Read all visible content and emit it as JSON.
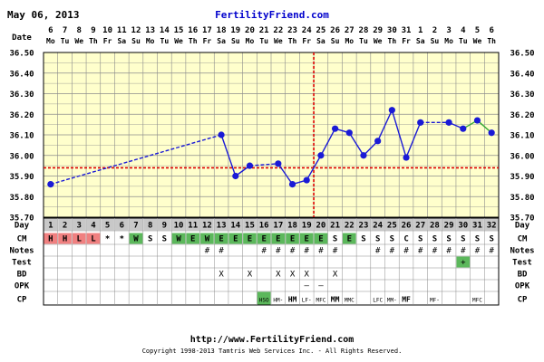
{
  "header": {
    "date": "May 06, 2013",
    "site": "FertilityFriend.com"
  },
  "footer": {
    "url": "http://www.FertilityFriend.com",
    "copyright": "Copyright 1998-2013 Tamtris Web Services Inc. - All Rights Reserved."
  },
  "row_labels": {
    "date": "Date",
    "day": "Day",
    "cm": "CM",
    "notes": "Notes",
    "test": "Test",
    "bd": "BD",
    "opk": "OPK",
    "cp": "CP"
  },
  "colors": {
    "plot_bg": "#ffffcc",
    "grid": "#8c8c8c",
    "frame": "#000000",
    "temp_line": "#1a1ad6",
    "temp_point": "#1a1ad6",
    "coverline": "#dd0000",
    "ovulation_line": "#dd0000",
    "final_segment": "#33aa33",
    "header_blue": "#0000cc",
    "day_cell_bg": "#c8c8c8",
    "cm_h_bg": "#f08080",
    "cm_green_bg": "#5cb85c",
    "test_bg": "#5cb85c",
    "cp_green_bg": "#5cb85c"
  },
  "chart_data": {
    "type": "line",
    "ylim": [
      35.7,
      36.5
    ],
    "yticks": [
      "35.70",
      "35.80",
      "35.90",
      "36.00",
      "36.10",
      "36.20",
      "36.30",
      "36.40",
      "36.50"
    ],
    "dates": [
      "6",
      "7",
      "8",
      "9",
      "10",
      "11",
      "12",
      "13",
      "14",
      "15",
      "16",
      "17",
      "18",
      "19",
      "20",
      "21",
      "22",
      "23",
      "24",
      "25",
      "26",
      "27",
      "28",
      "29",
      "30",
      "31",
      "1",
      "2",
      "3",
      "4",
      "5",
      "6"
    ],
    "weekdays": [
      "Mo",
      "Tu",
      "We",
      "Th",
      "Fr",
      "Sa",
      "Su",
      "Mo",
      "Tu",
      "We",
      "Th",
      "Fr",
      "Sa",
      "Su",
      "Mo",
      "Tu",
      "We",
      "Th",
      "Fr",
      "Sa",
      "Su",
      "Mo",
      "Tu",
      "We",
      "Th",
      "Fr",
      "Sa",
      "Su",
      "Mo",
      "Tu",
      "We",
      "Th"
    ],
    "days": [
      "1",
      "2",
      "3",
      "4",
      "5",
      "6",
      "7",
      "8",
      "9",
      "10",
      "11",
      "12",
      "13",
      "14",
      "15",
      "16",
      "17",
      "18",
      "19",
      "20",
      "21",
      "22",
      "23",
      "24",
      "25",
      "26",
      "27",
      "28",
      "29",
      "30",
      "31",
      "32"
    ],
    "temperatures": [
      35.86,
      null,
      null,
      null,
      null,
      null,
      null,
      null,
      null,
      null,
      null,
      null,
      36.1,
      35.9,
      35.95,
      null,
      35.96,
      35.86,
      35.88,
      36.0,
      36.13,
      36.11,
      36.0,
      36.07,
      36.22,
      35.99,
      36.16,
      null,
      36.16,
      36.13,
      36.17,
      36.11
    ],
    "dashed_gaps": [
      [
        1,
        13
      ],
      [
        15,
        17
      ],
      [
        27,
        29
      ]
    ],
    "coverline": 35.94,
    "ovulation_day": 19,
    "final_segment_color_days": [
      30,
      31,
      32
    ],
    "cm": [
      "H",
      "H",
      "L",
      "L",
      "*",
      "*",
      "W",
      "S",
      "S",
      "W",
      "E",
      "W",
      "E",
      "E",
      "E",
      "E",
      "E",
      "E",
      "E",
      "E",
      "S",
      "E",
      "S",
      "S",
      "S",
      "C",
      "S",
      "S",
      "S",
      "S",
      "S",
      "S"
    ],
    "cm_colors": [
      "pink",
      "pink",
      "pink",
      "pink",
      "",
      "",
      "green",
      "",
      "",
      "green",
      "green",
      "green",
      "green",
      "green",
      "green",
      "green",
      "green",
      "green",
      "green",
      "green",
      "",
      "green",
      "",
      "",
      "",
      "",
      "",
      "",
      "",
      "",
      "",
      ""
    ],
    "notes": [
      "",
      "",
      "",
      "",
      "",
      "",
      "",
      "",
      "",
      "",
      "",
      "#",
      "#",
      "",
      "",
      "#",
      "#",
      "#",
      "#",
      "#",
      "#",
      "",
      "",
      "#",
      "#",
      "#",
      "#",
      "#",
      "#",
      "#",
      "#",
      "#"
    ],
    "test": [
      "",
      "",
      "",
      "",
      "",
      "",
      "",
      "",
      "",
      "",
      "",
      "",
      "",
      "",
      "",
      "",
      "",
      "",
      "",
      "",
      "",
      "",
      "",
      "",
      "",
      "",
      "",
      "",
      "",
      "+",
      "",
      ""
    ],
    "bd": [
      "",
      "",
      "",
      "",
      "",
      "",
      "",
      "",
      "",
      "",
      "",
      "",
      "X",
      "",
      "X",
      "",
      "X",
      "X",
      "X",
      "",
      "X",
      "",
      "",
      "",
      "",
      "",
      "",
      "",
      "",
      "",
      "",
      ""
    ],
    "opk": [
      "",
      "",
      "",
      "",
      "",
      "",
      "",
      "",
      "",
      "",
      "",
      "",
      "",
      "",
      "",
      "",
      "",
      "",
      "–",
      "–",
      "",
      "",
      "",
      "",
      "",
      "",
      "",
      "",
      "",
      "",
      "",
      ""
    ],
    "cp": [
      "",
      "",
      "",
      "",
      "",
      "",
      "",
      "",
      "",
      "",
      "",
      "",
      "",
      "",
      "",
      "HSO",
      "HM-",
      "HM",
      "LF-",
      "MFC",
      "MM",
      "MMC",
      "",
      "LFC",
      "MM-",
      "MF",
      "",
      "MF-",
      "",
      "",
      "MFC",
      ""
    ],
    "cp_colors": [
      "",
      "",
      "",
      "",
      "",
      "",
      "",
      "",
      "",
      "",
      "",
      "",
      "",
      "",
      "",
      "green",
      "",
      "",
      "",
      "",
      "",
      "",
      "",
      "",
      "",
      "",
      "",
      "",
      "",
      "",
      "",
      ""
    ]
  }
}
